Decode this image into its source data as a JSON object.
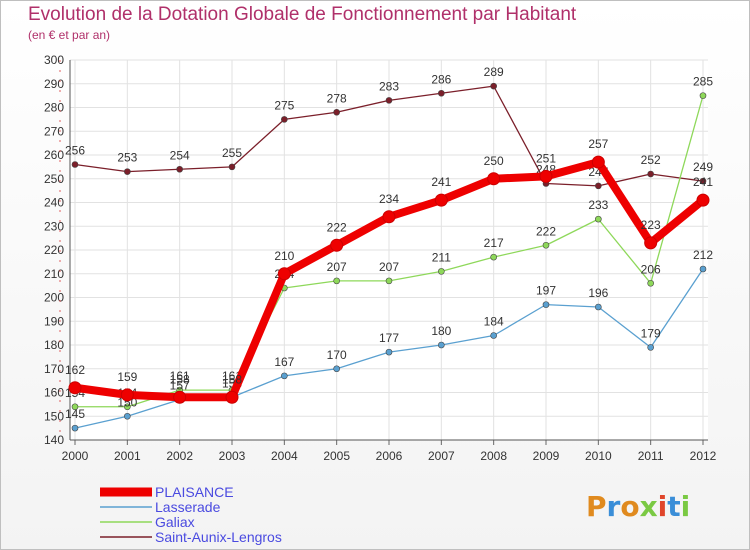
{
  "chart_data": {
    "type": "line",
    "title": "Evolution de la Dotation Globale de Fonctionnement par Habitant",
    "subtitle": "(en € et par an)",
    "xlabel": "",
    "ylabel": "",
    "ylim": [
      140,
      300
    ],
    "ytick_step": 10,
    "grid": true,
    "legend_position": "bottom-left",
    "categories": [
      "2000",
      "2001",
      "2002",
      "2003",
      "2004",
      "2005",
      "2006",
      "2007",
      "2008",
      "2009",
      "2010",
      "2011",
      "2012"
    ],
    "series": [
      {
        "name": "Saint-Aunix-Lengros",
        "color": "#7b1f2a",
        "values": [
          256,
          253,
          254,
          255,
          275,
          278,
          283,
          286,
          289,
          248,
          247,
          252,
          249
        ]
      },
      {
        "name": "Galiax",
        "color": "#8ed85a",
        "values": [
          154,
          154,
          161,
          161,
          204,
          207,
          207,
          211,
          217,
          222,
          233,
          206,
          285
        ]
      },
      {
        "name": "Lasserade",
        "color": "#5aa0d0",
        "values": [
          145,
          150,
          157,
          158,
          167,
          170,
          177,
          180,
          184,
          197,
          196,
          179,
          212
        ]
      },
      {
        "name": "PLAISANCE",
        "color": "#ee0000",
        "values": [
          162,
          159,
          158,
          158,
          210,
          222,
          234,
          241,
          250,
          251,
          257,
          223,
          241
        ]
      }
    ]
  },
  "brand": {
    "name": "Proxiti"
  }
}
